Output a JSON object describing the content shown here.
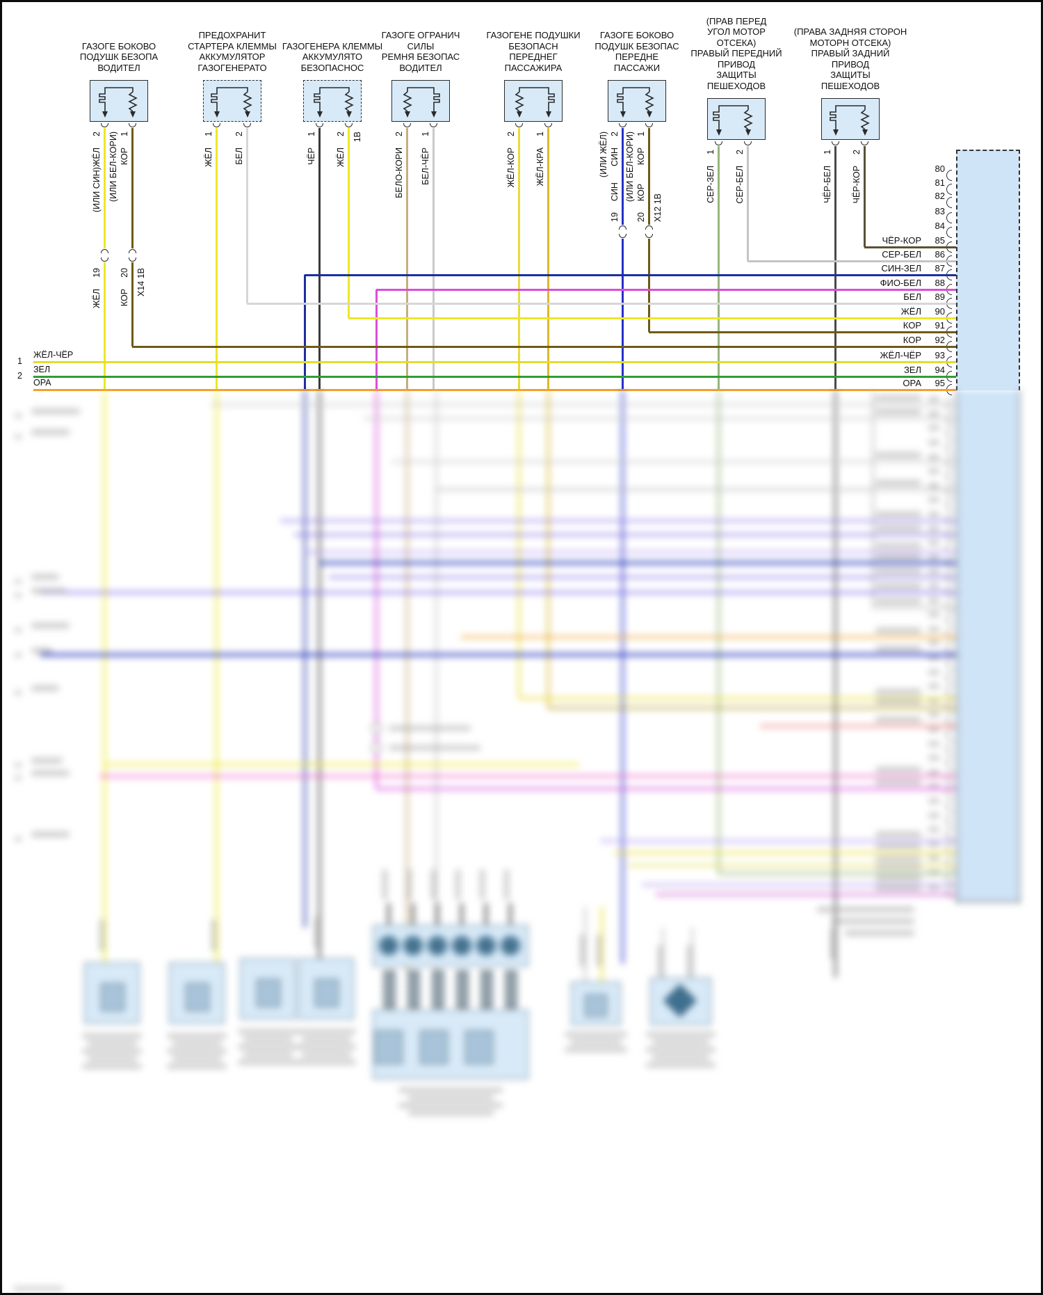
{
  "diagram": {
    "subject": "SRS / airbag gas-generator wiring diagram",
    "language": "ru"
  },
  "wire_colors": {
    "ЖЁЛ": "#ece72a",
    "КОР": "#6f5a15",
    "БЕЛ": "#d6d6d6",
    "ЧЁР": "#3a3a3a",
    "БЕЛО-КОРИ": "#c7ad7e",
    "БЕЛ-ЧЁР": "#c9c9c9",
    "ЖЁЛ-КОР": "#e9dd35",
    "ЖЁЛ-КРА": "#dcb92a",
    "СИН": "#2531c8",
    "СЕР-ЗЕЛ": "#97b57c",
    "СЕР-БЕЛ": "#c4c4c4",
    "ЧЁР-БЕЛ": "#4a4a4a",
    "ЧЁР-КОР": "#5a5135",
    "СИН-ЗЕЛ": "#1c2fa0",
    "ФИО-БЕЛ": "#d94fd9",
    "ЖЁЛ-ЧЁР": "#e3dc2e",
    "ЗЕЛ": "#2f9e33",
    "ОРА": "#f59f2c"
  },
  "components": [
    {
      "label_lines": [
        "ГАЗОГЕ БОКОВО",
        "ПОДУШК БЕЗОПА",
        "ВОДИТЕЛ"
      ],
      "border": "solid",
      "pins": [
        {
          "num": "2",
          "name": "(ИЛИ СИН)ЖЁЛ",
          "alt": "",
          "color": "ЖЁЛ"
        },
        {
          "num": "1",
          "name": "КОР",
          "alt": "(ИЛИ БЕЛ-КОРИ)",
          "color": "КОР"
        }
      ]
    },
    {
      "label_lines": [
        "ПРЕДОХРАНИТ",
        "СТАРТЕРА КЛЕММЫ",
        "АККУМУЛЯТОР",
        "ГАЗОГЕНЕРАТО"
      ],
      "border": "dashed",
      "pins": [
        {
          "num": "1",
          "name": "ЖЁЛ",
          "alt": "",
          "color": "ЖЁЛ"
        },
        {
          "num": "2",
          "name": "БЕЛ",
          "alt": "",
          "color": "БЕЛ"
        }
      ]
    },
    {
      "label_lines": [
        "ГАЗОГЕНЕРА КЛЕММЫ",
        "АККУМУЛЯТО",
        "БЕЗОПАСНОС"
      ],
      "border": "dashed",
      "pins": [
        {
          "num": "1",
          "name": "ЧЁР",
          "alt": "",
          "color": "ЧЁР"
        },
        {
          "num": "2",
          "name": "ЖЁЛ",
          "alt": "",
          "extra": "1В",
          "color": "ЖЁЛ"
        }
      ]
    },
    {
      "label_lines": [
        "ГАЗОГЕ ОГРАНИЧ",
        "СИЛЫ",
        "РЕМНЯ БЕЗОПАС",
        "ВОДИТЕЛ"
      ],
      "border": "solid",
      "pins": [
        {
          "num": "2",
          "name": "БЕЛО-КОРИ",
          "alt": "",
          "color": "БЕЛО-КОРИ"
        },
        {
          "num": "1",
          "name": "БЕЛ-ЧЁР",
          "alt": "",
          "color": "БЕЛ-ЧЁР"
        }
      ]
    },
    {
      "label_lines": [
        "ГАЗОГЕНЕ ПОДУШКИ",
        "БЕЗОПАСН",
        "ПЕРЕДНЕГ",
        "ПАССАЖИРА"
      ],
      "border": "solid",
      "pins": [
        {
          "num": "2",
          "name": "ЖЁЛ-КОР",
          "alt": "",
          "color": "ЖЁЛ-КОР"
        },
        {
          "num": "1",
          "name": "ЖЁЛ-КРА",
          "alt": "",
          "color": "ЖЁЛ-КРА"
        }
      ]
    },
    {
      "label_lines": [
        "ГАЗОГЕ БОКОВО",
        "ПОДУШК БЕЗОПАС",
        "ПЕРЕДНЕ",
        "ПАССАЖИ"
      ],
      "border": "solid",
      "pins": [
        {
          "num": "2",
          "name": "СИН",
          "alt": "(ИЛИ ЖЁЛ)",
          "color": "СИН"
        },
        {
          "num": "1",
          "name": "КОР",
          "alt": "(ИЛИ БЕЛ-КОРИ)",
          "color": "КОР"
        }
      ]
    },
    {
      "label_lines": [
        "(ПРАВ ПЕРЕД",
        "УГОЛ МОТОР",
        "ОТСЕКА)",
        "ПРАВЫЙ ПЕРЕДНИЙ",
        "ПРИВОД",
        "ЗАЩИТЫ",
        "ПЕШЕХОДОВ"
      ],
      "border": "solid",
      "pins": [
        {
          "num": "1",
          "name": "СЕР-ЗЕЛ",
          "alt": "",
          "color": "СЕР-ЗЕЛ"
        },
        {
          "num": "2",
          "name": "СЕР-БЕЛ",
          "alt": "",
          "color": "СЕР-БЕЛ"
        }
      ]
    },
    {
      "label_lines": [
        "(ПРАВА ЗАДНЯЯ СТОРОН",
        "МОТОРН ОТСЕКА)",
        "ПРАВЫЙ ЗАДНИЙ",
        "ПРИВОД",
        "ЗАЩИТЫ",
        "ПЕШЕХОДОВ"
      ],
      "border": "solid",
      "pins": [
        {
          "num": "1",
          "name": "ЧЁР-БЕЛ",
          "alt": "",
          "color": "ЧЁР-БЕЛ"
        },
        {
          "num": "2",
          "name": "ЧЁР-КОР",
          "alt": "",
          "color": "ЧЁР-КОР"
        }
      ]
    }
  ],
  "breaks": [
    {
      "connector": "X14 1В",
      "wires": [
        {
          "num": "19",
          "label": "ЖЁЛ"
        },
        {
          "num": "20",
          "label": "КОР"
        }
      ]
    },
    {
      "connector": "X12 1В",
      "wires": [
        {
          "num": "19",
          "label": "СИН"
        },
        {
          "num": "20",
          "label": "КОР"
        }
      ]
    }
  ],
  "main_connector": {
    "pins": [
      {
        "num": "80",
        "label": ""
      },
      {
        "num": "81",
        "label": ""
      },
      {
        "num": "82",
        "label": ""
      },
      {
        "num": "83",
        "label": ""
      },
      {
        "num": "84",
        "label": ""
      },
      {
        "num": "85",
        "label": "ЧЁР-КОР"
      },
      {
        "num": "86",
        "label": "СЕР-БЕЛ"
      },
      {
        "num": "87",
        "label": "СИН-ЗЕЛ"
      },
      {
        "num": "88",
        "label": "ФИО-БЕЛ"
      },
      {
        "num": "89",
        "label": "БЕЛ"
      },
      {
        "num": "90",
        "label": "ЖЁЛ"
      },
      {
        "num": "91",
        "label": "КОР"
      },
      {
        "num": "92",
        "label": "КОР"
      },
      {
        "num": "93",
        "label": "ЖЁЛ-ЧЁР"
      },
      {
        "num": "94",
        "label": "ЗЕЛ"
      },
      {
        "num": "95",
        "label": "ОРА"
      }
    ]
  },
  "left_wires": [
    {
      "num": "1",
      "label": "ЖЁЛ-ЧЁР"
    },
    {
      "num": "2",
      "label": "ЗЕЛ"
    },
    {
      "num": "",
      "label": "ОРА"
    }
  ]
}
